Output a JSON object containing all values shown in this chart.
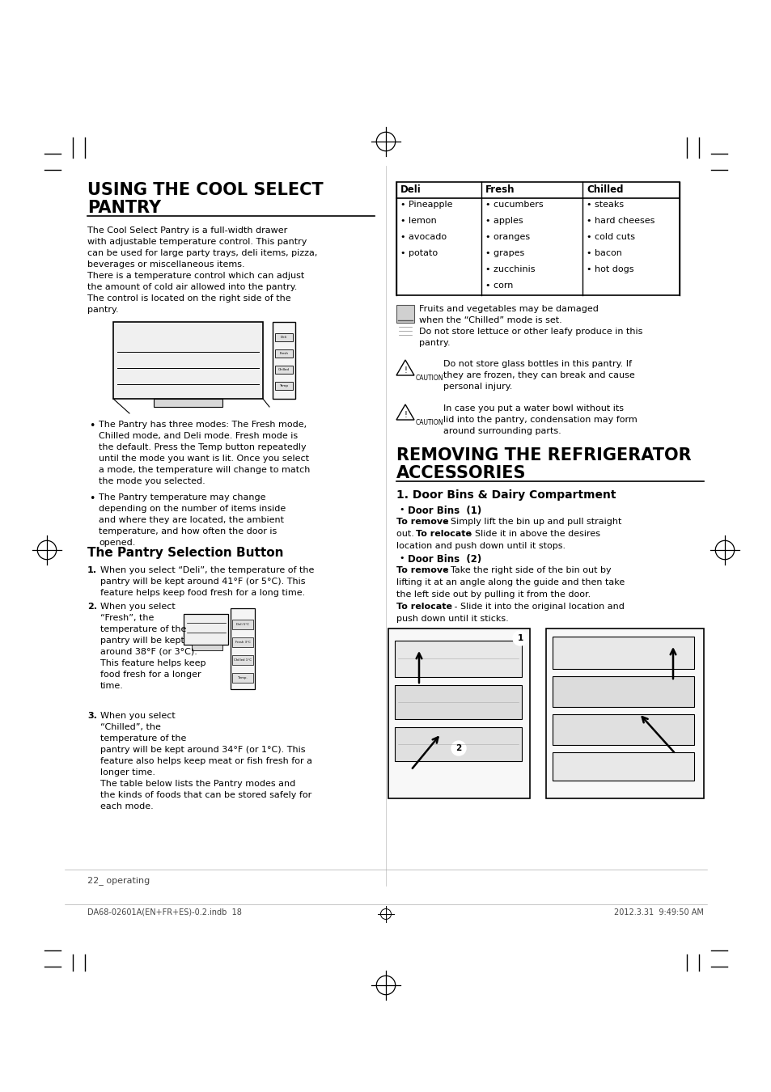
{
  "bg_color": "#ffffff",
  "title1_line1": "USING THE COOL SELECT",
  "title1_line2": "PANTRY",
  "section2_title_line1": "REMOVING THE REFRIGERATOR",
  "section2_title_line2": "ACCESSORIES",
  "section2_sub": "1. Door Bins & Dairy Compartment",
  "pantry_selection_title": "The Pantry Selection Button",
  "para1": "The Cool Select Pantry is a full-width drawer\nwith adjustable temperature control. This pantry\ncan be used for large party trays, deli items, pizza,\nbeverages or miscellaneous items.\nThere is a temperature control which can adjust\nthe amount of cold air allowed into the pantry.\nThe control is located on the right side of the\npantry.",
  "bullet1": "The Pantry has three modes: The Fresh mode,\nChilled mode, and Deli mode. Fresh mode is\nthe default. Press the Temp button repeatedly\nuntil the mode you want is lit. Once you select\na mode, the temperature will change to match\nthe mode you selected.",
  "bullet2": "The Pantry temperature may change\ndepending on the number of items inside\nand where they are located, the ambient\ntemperature, and how often the door is\nopened.",
  "numbered1": "When you select “Deli”, the temperature of the\npantry will be kept around 41°F (or 5°C). This\nfeature helps keep food fresh for a long time.",
  "numbered2": "When you select\n“Fresh”, the\ntemperature of the\npantry will be kept\naround 38°F (or 3°C).\nThis feature helps keep\nfood fresh for a longer\ntime.",
  "numbered3a": "When you select\n“Chilled”, the\ntemperature of the\npantry will be kept around 34°F (or 1°C). This\nfeature also helps keep meat or fish fresh for a\nlonger time.\nThe table below lists the Pantry modes and\nthe kinds of foods that can be stored safely for\neach mode.",
  "table_headers": [
    "Deli",
    "Fresh",
    "Chilled"
  ],
  "table_col1": [
    "Pineapple",
    "lemon",
    "avocado",
    "potato",
    "",
    ""
  ],
  "table_col2": [
    "cucumbers",
    "apples",
    "oranges",
    "grapes",
    "zucchinis",
    "corn"
  ],
  "table_col3": [
    "steaks",
    "hard cheeses",
    "cold cuts",
    "bacon",
    "hot dogs",
    ""
  ],
  "note1_text": "Fruits and vegetables may be damaged\nwhen the “Chilled” mode is set.\nDo not store lettuce or other leafy produce in this\npantry.",
  "caution1_text": "Do not store glass bottles in this pantry. If\nthey are frozen, they can break and cause\npersonal injury.",
  "caution2_text": "In case you put a water bowl without its\nlid into the pantry, condensation may form\naround surrounding parts.",
  "door_bins1_title": "Door Bins  (1)",
  "door_bins1_text": "To remove  Simply lift the bin up and pull straight\nout. To relocate  Slide it in above the desires\nlocation and push down until it stops.",
  "door_bins2_title": "Door Bins  (2)",
  "door_bins2_remove": "To remove  Take the right side of the bin out by\nlifting it at an angle along the guide and then take\nthe left side out by pulling it from the door.",
  "door_bins2_relocate": "To relocate - Slide it into the original location and\npush down until it sticks.",
  "footer_left": "22_ operating",
  "footer_file": "DA68-02601A(EN+FR+ES)-0.2.indb  18",
  "footer_date": "2012.3.31  9:49:50 AM"
}
